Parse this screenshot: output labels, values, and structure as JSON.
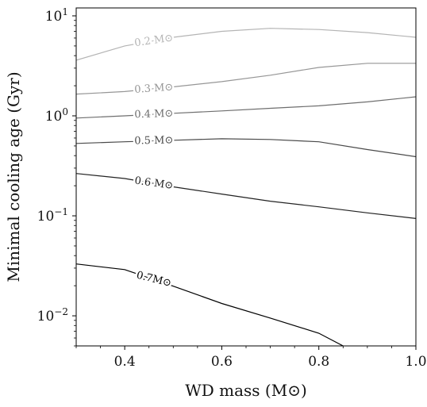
{
  "chart_data": {
    "type": "line",
    "title": "",
    "xlabel": "WD mass (M⊙)",
    "ylabel": "Minimal cooling age (Gyr)",
    "xlim": [
      0.3,
      1.0
    ],
    "ylim": [
      0.005,
      12
    ],
    "yscale": "log",
    "grid": false,
    "x_ticks": [
      {
        "value": 0.4,
        "label": "0.4"
      },
      {
        "value": 0.6,
        "label": "0.6"
      },
      {
        "value": 0.8,
        "label": "0.8"
      },
      {
        "value": 1.0,
        "label": "1.0"
      }
    ],
    "y_ticks": [
      {
        "value": 0.01,
        "base": "10",
        "exp": "−2"
      },
      {
        "value": 0.1,
        "base": "10",
        "exp": "−1"
      },
      {
        "value": 1,
        "base": "10",
        "exp": "0"
      },
      {
        "value": 10,
        "base": "10",
        "exp": "1"
      }
    ],
    "series": [
      {
        "name": "0.2 M⊙",
        "color": "#b4b4b4",
        "x": [
          0.3,
          0.4,
          0.5,
          0.6,
          0.7,
          0.8,
          0.9,
          1.0
        ],
        "y": [
          3.6,
          5.0,
          6.1,
          7.0,
          7.5,
          7.3,
          6.8,
          6.1
        ],
        "label_at": 0.46,
        "label_angle": -8
      },
      {
        "name": "0.3 M⊙",
        "color": "#969696",
        "x": [
          0.3,
          0.4,
          0.5,
          0.6,
          0.7,
          0.8,
          0.9,
          1.0
        ],
        "y": [
          1.65,
          1.75,
          1.95,
          2.2,
          2.55,
          3.05,
          3.35,
          3.35
        ],
        "label_at": 0.46,
        "label_angle": -4
      },
      {
        "name": "0.4 M⊙",
        "color": "#6e6e6e",
        "x": [
          0.3,
          0.4,
          0.5,
          0.6,
          0.7,
          0.8,
          0.9,
          1.0
        ],
        "y": [
          0.95,
          1.0,
          1.06,
          1.12,
          1.19,
          1.26,
          1.38,
          1.55
        ],
        "label_at": 0.46,
        "label_angle": -2
      },
      {
        "name": "0.5 M⊙",
        "color": "#4a4a4a",
        "x": [
          0.3,
          0.4,
          0.5,
          0.6,
          0.7,
          0.8,
          0.9,
          1.0
        ],
        "y": [
          0.53,
          0.55,
          0.57,
          0.59,
          0.58,
          0.55,
          0.46,
          0.39
        ],
        "label_at": 0.46,
        "label_angle": -1
      },
      {
        "name": "0.6 M⊙",
        "color": "#222222",
        "x": [
          0.3,
          0.4,
          0.5,
          0.6,
          0.7,
          0.8,
          0.9,
          1.0
        ],
        "y": [
          0.265,
          0.236,
          0.195,
          0.165,
          0.14,
          0.123,
          0.107,
          0.094
        ],
        "label_at": 0.46,
        "label_angle": 8
      },
      {
        "name": "0.7M⊙",
        "color": "#000000",
        "x": [
          0.3,
          0.4,
          0.5,
          0.6,
          0.7,
          0.8,
          0.85
        ],
        "y": [
          0.033,
          0.029,
          0.0198,
          0.0133,
          0.0095,
          0.0067,
          0.005
        ],
        "label_at": 0.46,
        "label_angle": 14
      }
    ]
  }
}
